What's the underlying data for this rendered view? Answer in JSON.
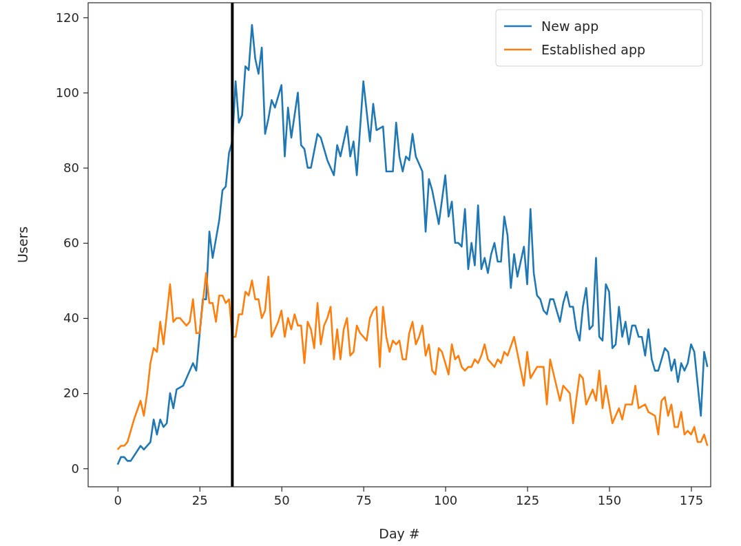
{
  "chart_data": {
    "type": "line",
    "xlabel": "Day #",
    "ylabel": "Users",
    "xlim": [
      -9,
      181
    ],
    "ylim": [
      -4.9,
      123.9
    ],
    "xticks": [
      0,
      25,
      50,
      75,
      100,
      125,
      150,
      175
    ],
    "yticks": [
      0,
      20,
      40,
      60,
      80,
      100,
      120
    ],
    "grid": false,
    "legend": "top right",
    "line_style": "solid",
    "marker": "none",
    "ref_lines": [
      {
        "axis": "x",
        "value": 35,
        "color": "#000000"
      }
    ],
    "series": [
      {
        "name": "New app",
        "color": "#1f77b4",
        "x": [
          0,
          1,
          2,
          3,
          4,
          7,
          8,
          10,
          11,
          12,
          13,
          14,
          15,
          16,
          17,
          18,
          20,
          23,
          24,
          26,
          27,
          28,
          29,
          31,
          32,
          33,
          34,
          35,
          36,
          37,
          38,
          39,
          40,
          41,
          42,
          43,
          44,
          45,
          46,
          47,
          48,
          50,
          51,
          52,
          53,
          55,
          56,
          57,
          58,
          59,
          61,
          62,
          64,
          66,
          67,
          68,
          70,
          71,
          72,
          73,
          75,
          77,
          78,
          79,
          81,
          82,
          84,
          85,
          86,
          87,
          88,
          89,
          90,
          91,
          93,
          94,
          95,
          96,
          98,
          100,
          101,
          102,
          103,
          104,
          105,
          106,
          107,
          108,
          109,
          110,
          111,
          112,
          113,
          114,
          115,
          116,
          117,
          118,
          119,
          120,
          121,
          122,
          124,
          125,
          126,
          127,
          128,
          129,
          130,
          131,
          132,
          133,
          134,
          135,
          136,
          137,
          138,
          139,
          140,
          141,
          142,
          143,
          144,
          145,
          146,
          147,
          148,
          149,
          150,
          151,
          152,
          153,
          154,
          155,
          156,
          157,
          158,
          159,
          160,
          161,
          162,
          163,
          164,
          165,
          167,
          168,
          169,
          170,
          171,
          172,
          173,
          174,
          175,
          176,
          178,
          179,
          180
        ],
        "values": [
          1,
          3,
          3,
          2,
          2,
          6,
          5,
          7,
          13,
          9,
          13,
          11,
          12,
          20,
          16,
          21,
          22,
          28,
          26,
          45,
          45,
          63,
          56,
          66,
          74,
          75,
          84,
          87,
          103,
          92,
          94,
          107,
          106,
          118,
          109,
          105,
          112,
          89,
          93,
          98,
          96,
          102,
          83,
          96,
          88,
          100,
          86,
          85,
          80,
          80,
          89,
          88,
          82,
          78,
          86,
          83,
          91,
          83,
          87,
          78,
          103,
          87,
          97,
          90,
          91,
          79,
          79,
          92,
          83,
          79,
          83,
          82,
          89,
          83,
          79,
          63,
          77,
          74,
          65,
          78,
          67,
          71,
          60,
          60,
          59,
          69,
          53,
          60,
          54,
          70,
          53,
          56,
          52,
          57,
          60,
          55,
          55,
          67,
          62,
          48,
          57,
          51,
          59,
          49,
          69,
          52,
          46,
          45,
          42,
          41,
          45,
          45,
          42,
          39,
          44,
          47,
          43,
          43,
          37,
          34,
          43,
          48,
          37,
          38,
          56,
          35,
          34,
          49,
          47,
          32,
          33,
          43,
          35,
          39,
          33,
          38,
          38,
          35,
          35,
          30,
          37,
          29,
          26,
          26,
          32,
          31,
          26,
          29,
          23,
          28,
          26,
          28,
          33,
          31,
          14,
          31,
          27
        ]
      },
      {
        "name": "Established app",
        "color": "#ff7f0e",
        "x": [
          0,
          1,
          2,
          3,
          4,
          5,
          7,
          8,
          9,
          10,
          11,
          12,
          13,
          14,
          16,
          17,
          18,
          19,
          21,
          22,
          23,
          24,
          25,
          27,
          28,
          29,
          30,
          31,
          32,
          33,
          34,
          35,
          36,
          37,
          38,
          39,
          40,
          41,
          42,
          43,
          44,
          45,
          46,
          47,
          49,
          50,
          51,
          52,
          53,
          54,
          55,
          56,
          57,
          58,
          59,
          60,
          61,
          62,
          63,
          64,
          65,
          66,
          67,
          68,
          69,
          70,
          71,
          72,
          73,
          74,
          75,
          76,
          77,
          78,
          79,
          80,
          81,
          82,
          83,
          84,
          85,
          86,
          87,
          88,
          89,
          90,
          91,
          92,
          93,
          94,
          95,
          96,
          97,
          98,
          99,
          100,
          101,
          102,
          103,
          104,
          105,
          106,
          107,
          108,
          109,
          110,
          111,
          112,
          113,
          115,
          116,
          117,
          118,
          119,
          121,
          124,
          125,
          126,
          128,
          130,
          131,
          132,
          135,
          136,
          138,
          139,
          141,
          142,
          143,
          145,
          146,
          147,
          148,
          149,
          151,
          153,
          154,
          155,
          157,
          158,
          159,
          161,
          162,
          164,
          165,
          166,
          167,
          168,
          169,
          170,
          171,
          172,
          173,
          174,
          175,
          176,
          177,
          178,
          179,
          180
        ],
        "values": [
          5,
          6,
          6,
          7,
          10,
          13,
          18,
          14,
          20,
          28,
          32,
          31,
          39,
          33,
          49,
          39,
          40,
          40,
          38,
          39,
          45,
          36,
          36,
          52,
          44,
          44,
          39,
          46,
          46,
          44,
          45,
          35,
          35,
          41,
          41,
          47,
          46,
          50,
          45,
          45,
          40,
          42,
          51,
          35,
          39,
          42,
          35,
          40,
          37,
          41,
          38,
          38,
          28,
          39,
          37,
          32,
          44,
          33,
          38,
          40,
          43,
          29,
          37,
          29,
          37,
          40,
          30,
          31,
          38,
          36,
          35,
          34,
          40,
          42,
          43,
          27,
          43,
          35,
          31,
          34,
          33,
          34,
          29,
          29,
          36,
          39,
          33,
          35,
          38,
          30,
          33,
          26,
          25,
          32,
          31,
          28,
          25,
          33,
          29,
          30,
          27,
          26,
          27,
          27,
          29,
          28,
          30,
          33,
          29,
          27,
          29,
          28,
          31,
          30,
          35,
          22,
          31,
          24,
          27,
          27,
          17,
          29,
          18,
          22,
          20,
          12,
          25,
          24,
          17,
          21,
          18,
          26,
          16,
          22,
          12,
          16,
          13,
          17,
          17,
          22,
          16,
          17,
          15,
          14,
          9,
          18,
          19,
          14,
          17,
          11,
          11,
          15,
          9,
          10,
          9,
          11,
          7,
          7,
          9,
          6
        ]
      }
    ]
  }
}
